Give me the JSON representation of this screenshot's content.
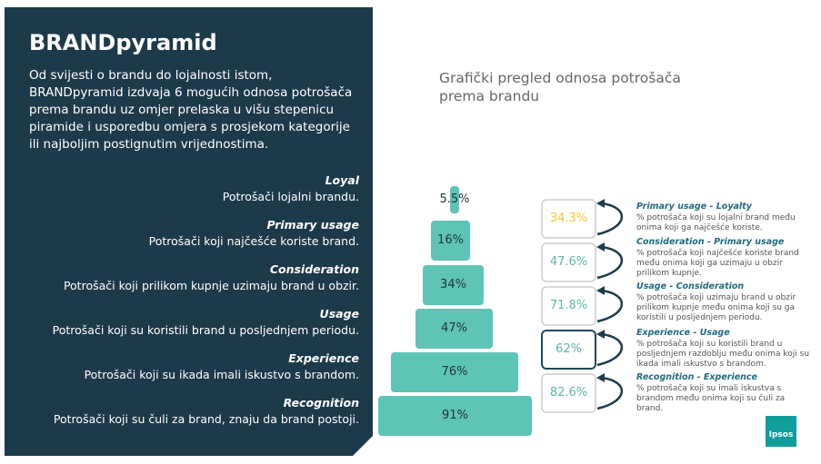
{
  "left_panel": {
    "title": "BRANDpyramid",
    "intro": "Od svijesti o brandu do lojalnosti istom, BRANDpyramid izdvaja 6 mogućih odnosa potrošača prema brandu uz omjer prelaska u višu stepenicu piramide i usporedbu omjera s prosjekom kategorije ili najboljim postignutim vrijednostima.",
    "levels": [
      {
        "name": "Loyal",
        "description": "Potrošači lojalni brandu."
      },
      {
        "name": "Primary usage",
        "description": "Potrošači koji najčešće koriste brand."
      },
      {
        "name": "Consideration",
        "description": "Potrošači koji prilikom kupnje uzimaju brand u obzir."
      },
      {
        "name": "Usage",
        "description": "Potrošači koji su koristili brand u posljednjem periodu."
      },
      {
        "name": "Experience",
        "description": "Potrošači koji su ikada imali iskustvo s brandom."
      },
      {
        "name": "Recognition",
        "description": "Potrošači koji su čuli za brand, znaju da brand postoji."
      }
    ]
  },
  "chart": {
    "title": "Grafički pregled odnosa potrošača prema brandu",
    "pyramid": [
      "5.5%",
      "16%",
      "34%",
      "47%",
      "76%",
      "91%"
    ],
    "conversions": [
      "34.3%",
      "47.6%",
      "71.8%",
      "62%",
      "82.6%"
    ],
    "notes": [
      {
        "title": "Primary usage - Loyalty",
        "text": "% potrošača koji su lojalni brand među onima koji ga najčešće koriste."
      },
      {
        "title": "Consideration - Primary usage",
        "text": "% potrošača koji najčešće koriste brand među onima koji ga uzimaju u obzir prilikom kupnje."
      },
      {
        "title": "Usage - Consideration",
        "text": "% potrošača koji uzimaju brand u obzir prilikom kupnje među onima koji su ga koristili u posljednjem periodu."
      },
      {
        "title": "Experience - Usage",
        "text": "% potrošača koji su koristili brand u posljednjem razdoblju među onima koji su ikada imali iskustvo s brandom."
      },
      {
        "title": "Recognition - Experience",
        "text": "% potrošača koji su imali iskustva s brandom među onima koji su čuli za brand."
      }
    ]
  },
  "logo": "Ipsos"
}
